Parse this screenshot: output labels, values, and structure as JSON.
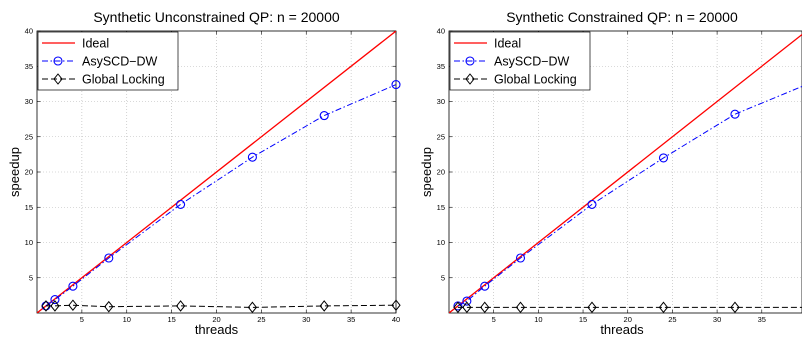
{
  "chart_data": [
    {
      "type": "line",
      "title": "Synthetic Unconstrained QP: n = 20000",
      "xlabel": "threads",
      "ylabel": "speedup",
      "xlim": [
        0,
        40
      ],
      "ylim": [
        0,
        40
      ],
      "xticks": [
        5,
        10,
        15,
        20,
        25,
        30,
        35,
        40
      ],
      "yticks": [
        5,
        10,
        15,
        20,
        25,
        30,
        35,
        40
      ],
      "grid": true,
      "legend_position": "top-left",
      "series": [
        {
          "name": "Ideal",
          "color": "#ff0000",
          "style": "solid",
          "marker": "none",
          "x": [
            0,
            40
          ],
          "y": [
            0,
            40
          ]
        },
        {
          "name": "AsySCD−DW",
          "color": "#0000ff",
          "style": "dashdot",
          "marker": "circle",
          "x": [
            1,
            2,
            4,
            8,
            16,
            24,
            32,
            40
          ],
          "y": [
            1.0,
            1.9,
            3.8,
            7.8,
            15.4,
            22.1,
            28.0,
            32.4
          ]
        },
        {
          "name": "Global Locking",
          "color": "#000000",
          "style": "dashed",
          "marker": "diamond",
          "x": [
            1,
            2,
            4,
            8,
            16,
            24,
            32,
            40
          ],
          "y": [
            1.0,
            1.0,
            1.1,
            0.9,
            1.0,
            0.8,
            1.0,
            1.1
          ]
        }
      ]
    },
    {
      "type": "line",
      "title": "Synthetic Constrained QP: n = 20000",
      "xlabel": "threads",
      "ylabel": "speedup",
      "xlim": [
        0,
        40
      ],
      "ylim": [
        0,
        40
      ],
      "xticks": [
        5,
        10,
        15,
        20,
        25,
        30,
        35
      ],
      "yticks": [
        5,
        10,
        15,
        20,
        25,
        30,
        35,
        40
      ],
      "grid": true,
      "legend_position": "top-left",
      "series": [
        {
          "name": "Ideal",
          "color": "#ff0000",
          "style": "solid",
          "marker": "none",
          "x": [
            0,
            40
          ],
          "y": [
            0,
            40
          ]
        },
        {
          "name": "AsySCD−DW",
          "color": "#0000ff",
          "style": "dashdot",
          "marker": "circle",
          "x": [
            1,
            2,
            4,
            8,
            16,
            24,
            32,
            40
          ],
          "y": [
            1.0,
            1.7,
            3.8,
            7.8,
            15.4,
            22.0,
            28.2,
            32.4
          ]
        },
        {
          "name": "Global Locking",
          "color": "#000000",
          "style": "dashed",
          "marker": "diamond",
          "x": [
            1,
            2,
            4,
            8,
            16,
            24,
            32,
            40
          ],
          "y": [
            0.8,
            0.8,
            0.8,
            0.8,
            0.8,
            0.8,
            0.8,
            0.8
          ]
        }
      ]
    }
  ]
}
